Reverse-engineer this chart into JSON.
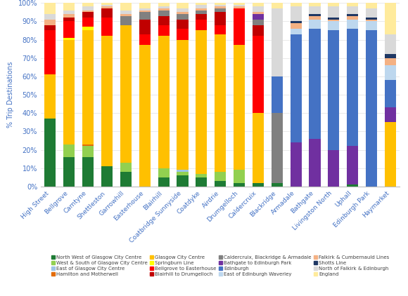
{
  "stations": [
    "High Street",
    "Bellgrove",
    "Carntyne",
    "Shettleston",
    "Garrowhill",
    "Easterhouse",
    "Blairhill",
    "Coatbridge Sunnyside",
    "Coatdyke",
    "Airdrie",
    "Drumgelloch",
    "Caldercruix",
    "Blackridge",
    "Armadale",
    "Bathgate",
    "Livingston North",
    "Uphall",
    "Edinburgh Park",
    "Haymarket"
  ],
  "series_order": [
    "North West of Glasgow City Centre",
    "West & South of Glasgow City Centre",
    "East of Glasgow City Centre",
    "Hamilton and Motherwell",
    "Glasgow City Centre",
    "Springburn Line",
    "Bellgrove to Easterhouse",
    "Blairhill to Drumgelloch",
    "Caldercruix, Blackridge & Armadale",
    "Bathgate to Edinburgh Park",
    "Edinburgh",
    "East of Edinburgh Waverley",
    "Falkirk & Cumbernauld Lines",
    "Shotts Line",
    "North of Falkirk & Edinburgh",
    "England"
  ],
  "series": {
    "North West of Glasgow City Centre": {
      "color": "#1E7B34",
      "values": [
        37,
        16,
        16,
        11,
        8,
        0,
        5,
        6,
        5,
        3,
        2,
        2,
        2,
        0,
        0,
        0,
        1,
        0,
        0
      ]
    },
    "West & South of Glasgow City Centre": {
      "color": "#92D050",
      "values": [
        0,
        7,
        6,
        0,
        5,
        0,
        5,
        2,
        2,
        5,
        7,
        0,
        0,
        0,
        0,
        0,
        0,
        0,
        0
      ]
    },
    "East of Glasgow City Centre": {
      "color": "#9DC3E6",
      "values": [
        0,
        0,
        0,
        0,
        0,
        0,
        0,
        1,
        0,
        0,
        0,
        0,
        0,
        0,
        0,
        0,
        0,
        0,
        0
      ]
    },
    "Hamilton and Motherwell": {
      "color": "#E36C09",
      "values": [
        0,
        0,
        1,
        0,
        0,
        0,
        0,
        0,
        0,
        0,
        0,
        0,
        0,
        0,
        0,
        0,
        0,
        0,
        0
      ]
    },
    "Glasgow City Centre": {
      "color": "#FFC000",
      "values": [
        24,
        57,
        62,
        71,
        75,
        77,
        72,
        71,
        78,
        75,
        68,
        38,
        0,
        0,
        0,
        0,
        0,
        0,
        35
      ]
    },
    "Springburn Line": {
      "color": "#FFFF00",
      "values": [
        0,
        1,
        2,
        0,
        0,
        0,
        0,
        0,
        0,
        0,
        0,
        0,
        0,
        0,
        0,
        0,
        0,
        0,
        0
      ]
    },
    "Bellgrove to Easterhouse": {
      "color": "#FF0000",
      "values": [
        24,
        9,
        5,
        10,
        0,
        6,
        6,
        6,
        6,
        5,
        20,
        42,
        0,
        0,
        0,
        0,
        0,
        0,
        0
      ]
    },
    "Blairhill to Drumgelloch": {
      "color": "#C00000",
      "values": [
        3,
        2,
        3,
        5,
        0,
        8,
        5,
        5,
        3,
        7,
        0,
        6,
        0,
        0,
        0,
        0,
        0,
        0,
        0
      ]
    },
    "Caldercruix, Blackridge & Armadale": {
      "color": "#808080",
      "values": [
        0,
        0,
        0,
        0,
        5,
        4,
        3,
        3,
        2,
        2,
        0,
        3,
        38,
        0,
        0,
        0,
        0,
        0,
        0
      ]
    },
    "Bathgate to Edinburgh Park": {
      "color": "#7030A0",
      "values": [
        0,
        0,
        0,
        0,
        0,
        0,
        0,
        0,
        0,
        0,
        0,
        3,
        0,
        24,
        26,
        20,
        21,
        0,
        8
      ]
    },
    "Edinburgh": {
      "color": "#4472C4",
      "values": [
        0,
        0,
        0,
        0,
        0,
        0,
        0,
        0,
        0,
        0,
        0,
        0,
        20,
        59,
        60,
        65,
        64,
        85,
        15
      ]
    },
    "East of Edinburgh Waverley": {
      "color": "#BDD7EE",
      "values": [
        0,
        0,
        0,
        0,
        0,
        0,
        0,
        0,
        0,
        0,
        0,
        0,
        0,
        3,
        5,
        5,
        5,
        5,
        8
      ]
    },
    "Falkirk & Cumbernauld Lines": {
      "color": "#F4B183",
      "values": [
        3,
        2,
        1,
        1,
        1,
        1,
        1,
        1,
        1,
        1,
        1,
        1,
        0,
        3,
        2,
        1,
        2,
        1,
        4
      ]
    },
    "Shotts Line": {
      "color": "#1F3864",
      "values": [
        0,
        0,
        0,
        0,
        0,
        0,
        0,
        0,
        0,
        0,
        0,
        0,
        0,
        1,
        1,
        1,
        1,
        1,
        2
      ]
    },
    "North of Falkirk & Edinburgh": {
      "color": "#D9D9D9",
      "values": [
        3,
        2,
        2,
        1,
        2,
        1,
        1,
        2,
        2,
        1,
        1,
        3,
        37,
        8,
        4,
        6,
        4,
        5,
        11
      ]
    },
    "England": {
      "color": "#FFEB9C",
      "values": [
        6,
        4,
        2,
        1,
        4,
        3,
        2,
        3,
        1,
        1,
        1,
        2,
        3,
        2,
        2,
        2,
        2,
        3,
        17
      ]
    }
  },
  "legend_order": [
    [
      "North West of Glasgow City Centre",
      "West & South of Glasgow City Centre",
      "East of Glasgow City Centre",
      "Hamilton and Motherwell"
    ],
    [
      "Glasgow City Centre",
      "Springburn Line",
      "Bellgrove to Easterhouse",
      "Blairhill to Drumgelloch"
    ],
    [
      "Caldercruix, Blackridge & Armadale",
      "Bathgate to Edinburgh Park",
      "Edinburgh",
      "East of Edinburgh Waverley"
    ],
    [
      "Falkirk & Cumbernauld Lines",
      "Shotts Line",
      "North of Falkirk & Edinburgh",
      "England"
    ]
  ],
  "ylabel": "% Trip Destinations",
  "ylim": [
    0,
    100
  ],
  "yticks": [
    0,
    10,
    20,
    30,
    40,
    50,
    60,
    70,
    80,
    90,
    100
  ],
  "ytick_labels": [
    "0%",
    "10%",
    "20%",
    "30%",
    "40%",
    "50%",
    "60%",
    "70%",
    "80%",
    "90%",
    "100%"
  ],
  "axis_color": "#4472C4",
  "grid_color": "#E0E0E0",
  "bg_color": "#FFFFFF"
}
